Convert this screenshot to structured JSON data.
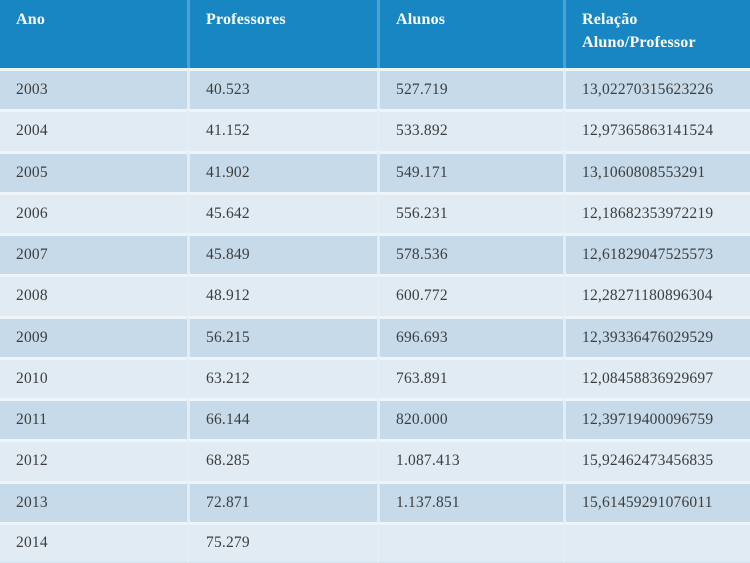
{
  "colors": {
    "header_background": "#1886C3",
    "header_text": "#FFFFFF",
    "header_divider": "#4DA3D0",
    "row_dark": "#C6DAE9",
    "row_light": "#E0EBF4",
    "grid_line": "#EDF4FA",
    "body_text": "#3D3D3D"
  },
  "chart_data": {
    "type": "table",
    "columns": [
      "Ano",
      "Professores",
      "Alunos",
      "Relação Aluno/Professor"
    ],
    "rows": [
      [
        "2003",
        "40.523",
        "527.719",
        "13,02270315623226"
      ],
      [
        "2004",
        "41.152",
        "533.892",
        "12,97365863141524"
      ],
      [
        "2005",
        "41.902",
        "549.171",
        "13,1060808553291"
      ],
      [
        "2006",
        "45.642",
        "556.231",
        "12,18682353972219"
      ],
      [
        "2007",
        "45.849",
        "578.536",
        "12,61829047525573"
      ],
      [
        "2008",
        "48.912",
        "600.772",
        "12,28271180896304"
      ],
      [
        "2009",
        "56.215",
        "696.693",
        "12,39336476029529"
      ],
      [
        "2010",
        "63.212",
        "763.891",
        "12,08458836929697"
      ],
      [
        "2011",
        "66.144",
        "820.000",
        "12,39719400096759"
      ],
      [
        "2012",
        "68.285",
        "1.087.413",
        "15,92462473456835"
      ],
      [
        "2013",
        "72.871",
        "1.137.851",
        "15,61459291076011"
      ],
      [
        "2014",
        "75.279",
        "",
        ""
      ]
    ]
  }
}
